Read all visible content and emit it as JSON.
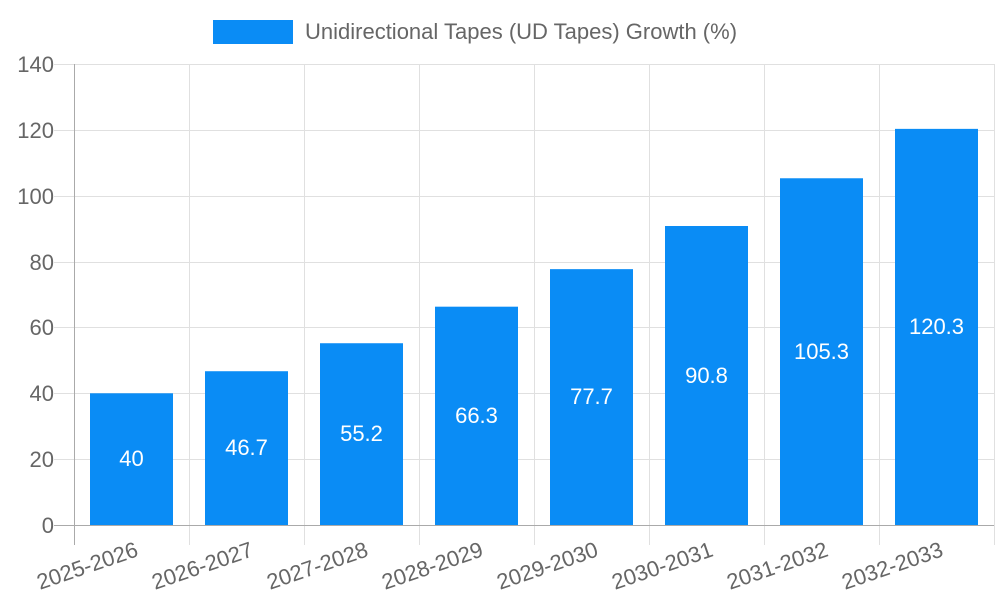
{
  "legend": {
    "label": "Unidirectional Tapes (UD Tapes) Growth (%)",
    "color": "#0a8cf5"
  },
  "chart_data": {
    "type": "bar",
    "title": "",
    "xlabel": "",
    "ylabel": "",
    "categories": [
      "2025-2026",
      "2026-2027",
      "2027-2028",
      "2028-2029",
      "2029-2030",
      "2030-2031",
      "2031-2032",
      "2032-2033"
    ],
    "series": [
      {
        "name": "Unidirectional Tapes (UD Tapes) Growth (%)",
        "values": [
          40,
          46.7,
          55.2,
          66.3,
          77.7,
          90.8,
          105.3,
          120.3
        ],
        "color": "#0a8cf5"
      }
    ],
    "ylim": [
      0,
      140
    ],
    "yticks": [
      0,
      20,
      40,
      60,
      80,
      100,
      120,
      140
    ],
    "grid": true,
    "legend_position": "top",
    "data_labels": [
      "40",
      "46.7",
      "55.2",
      "66.3",
      "77.7",
      "90.8",
      "105.3",
      "120.3"
    ]
  }
}
